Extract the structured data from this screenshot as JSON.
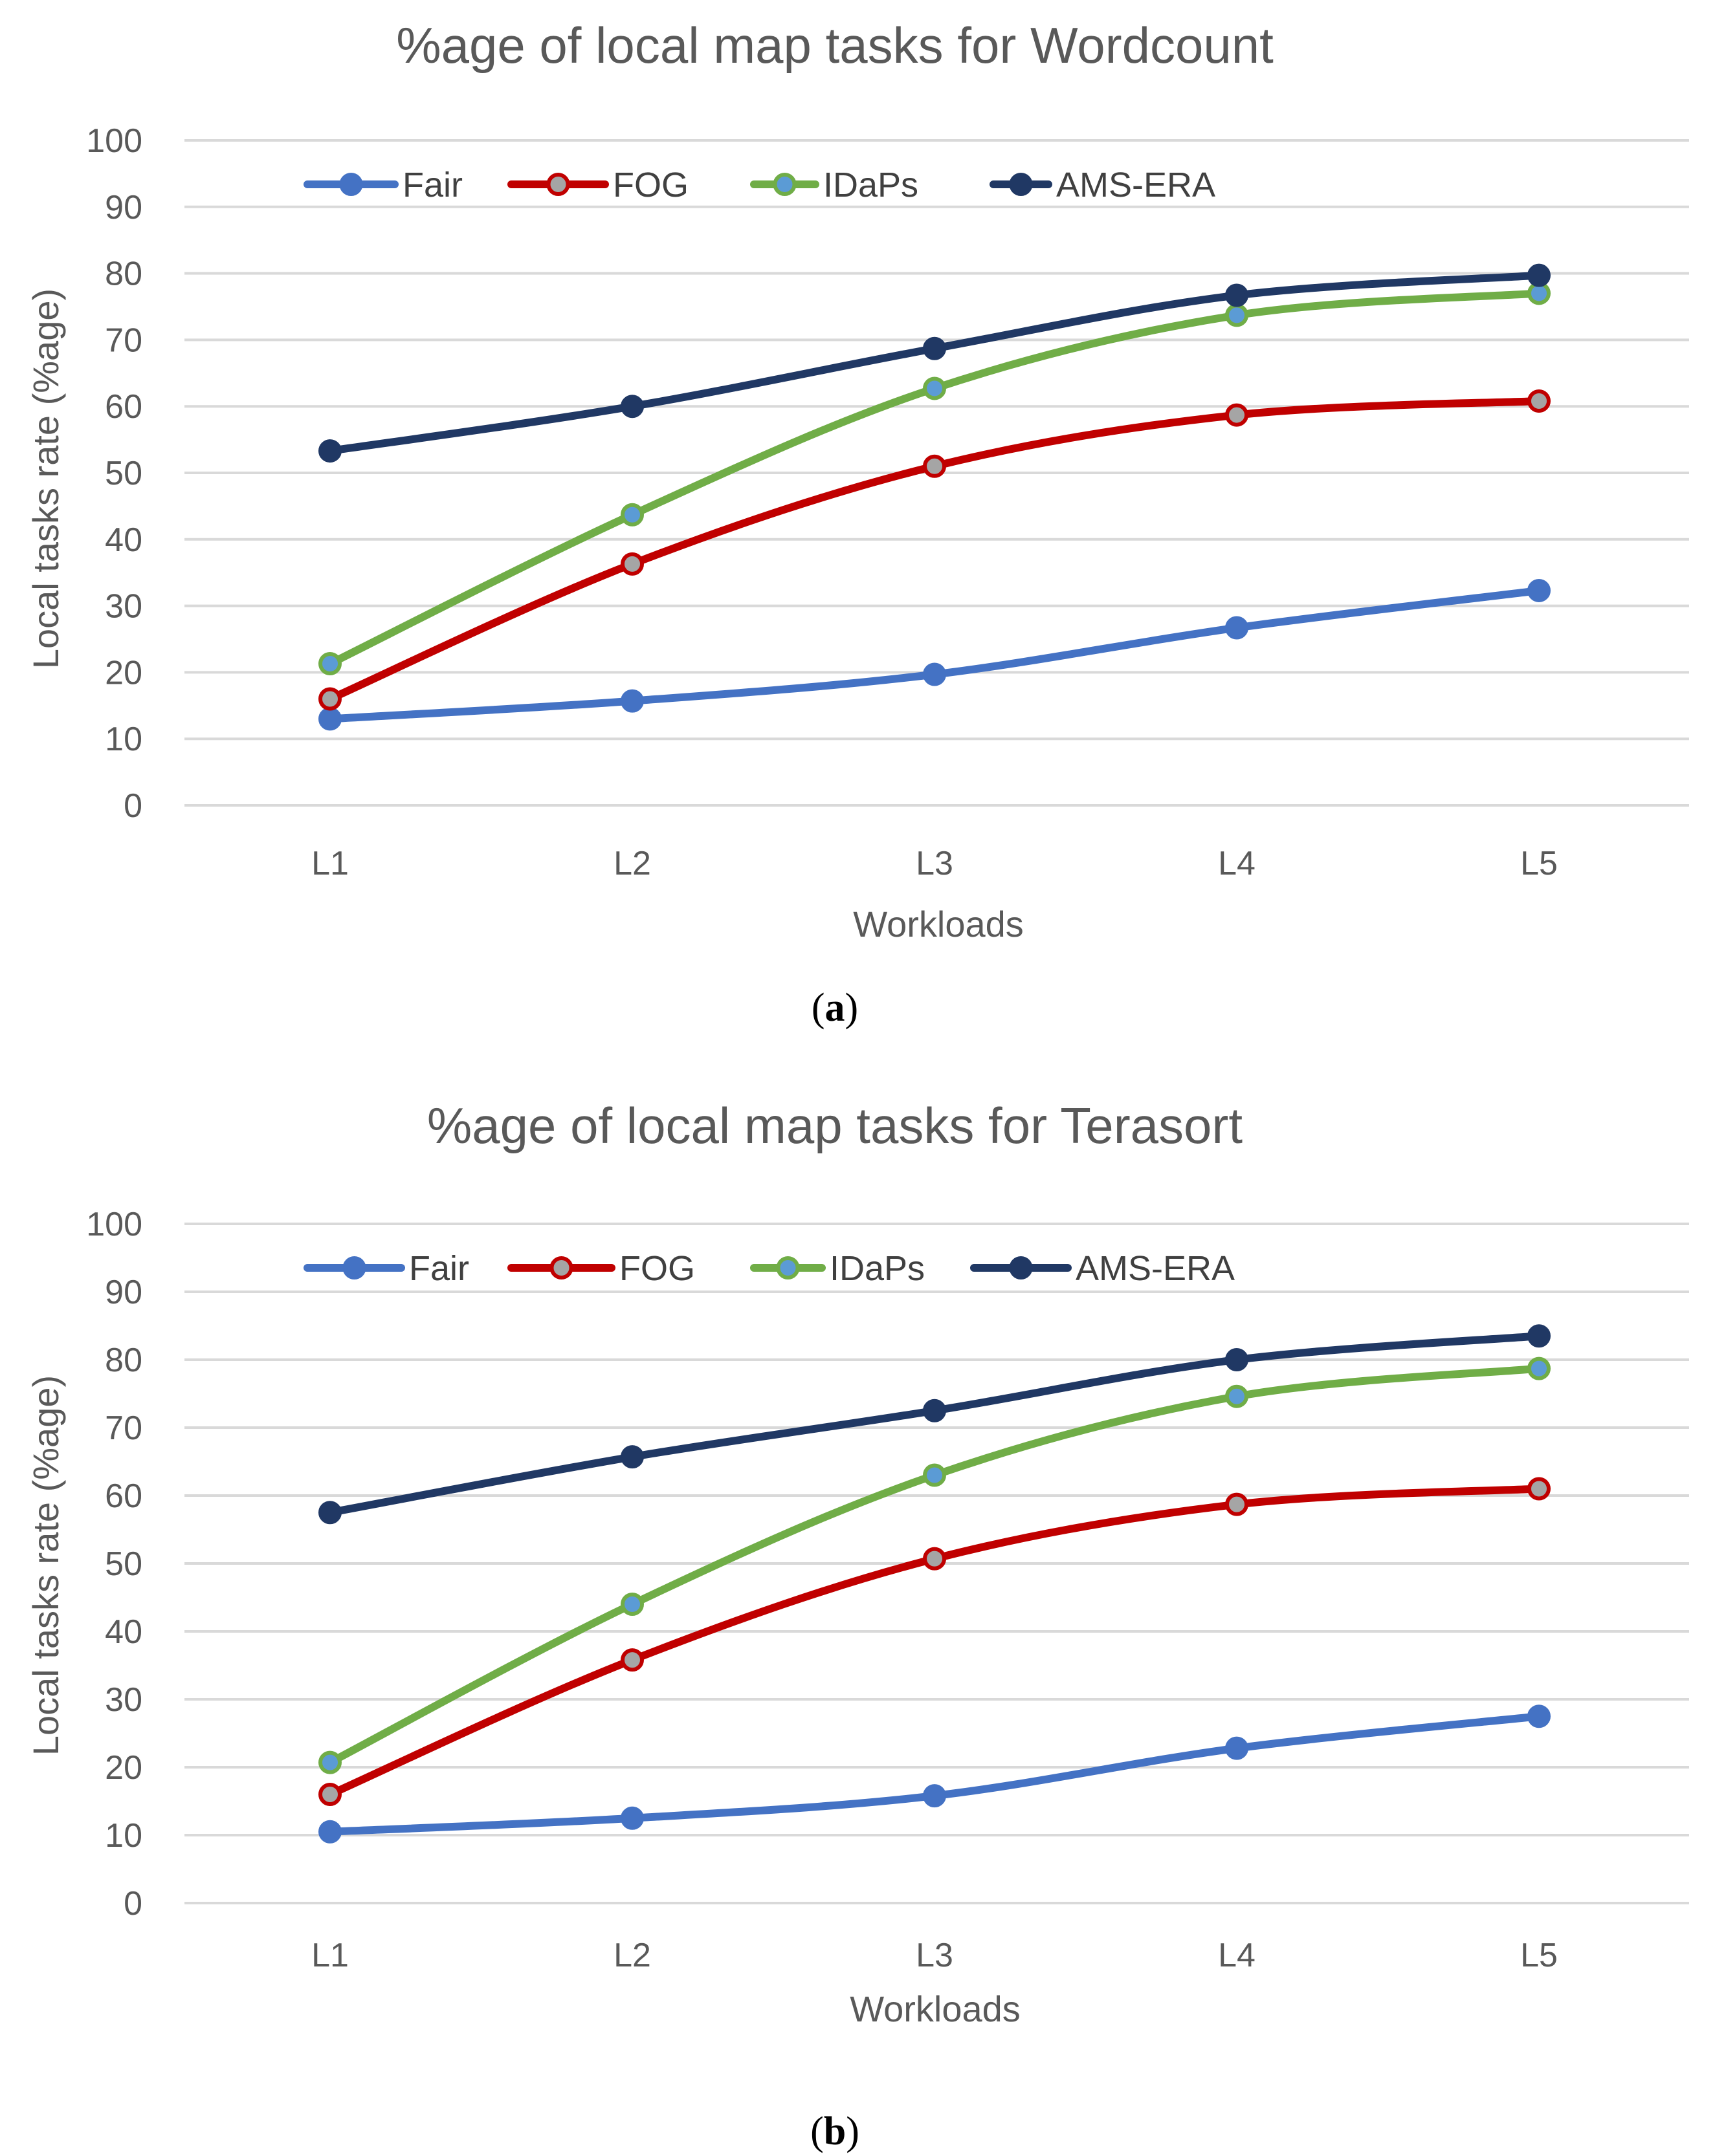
{
  "colors": {
    "Fair": "#4472C4",
    "FOG": "#C00000",
    "IDaPs": "#70AD47",
    "AMS-ERA": "#203864",
    "marker_fill_Fair": "#4472C4",
    "marker_fill_FOG": "#A5A5A5",
    "marker_fill_IDaPs": "#5B9BD5",
    "marker_fill_AMS-ERA": "#203864"
  },
  "chart_data": [
    {
      "type": "line",
      "title": "%age of local map tasks for Wordcount",
      "xlabel": "Workloads",
      "ylabel": "Local tasks rate (%age)",
      "caption_letter": "a",
      "categories": [
        "L1",
        "L2",
        "L3",
        "L4",
        "L5"
      ],
      "ylim": [
        0,
        100
      ],
      "yticks": [
        "0",
        "10",
        "20",
        "30",
        "40",
        "50",
        "60",
        "70",
        "80",
        "90",
        "100"
      ],
      "grid": true,
      "legend": "top",
      "series": [
        {
          "name": "Fair",
          "values": [
            13,
            15.7,
            19.7,
            26.7,
            32.3
          ]
        },
        {
          "name": "FOG",
          "values": [
            16,
            36.3,
            51,
            58.7,
            60.8
          ]
        },
        {
          "name": "IDaPs",
          "values": [
            21.3,
            43.7,
            62.7,
            73.7,
            77
          ]
        },
        {
          "name": "AMS-ERA",
          "values": [
            53.3,
            60,
            68.7,
            76.7,
            79.7
          ]
        }
      ]
    },
    {
      "type": "line",
      "title": "%age of local map tasks for Terasort",
      "xlabel": "Workloads",
      "ylabel": "Local tasks rate (%age)",
      "caption_letter": "b",
      "categories": [
        "L1",
        "L2",
        "L3",
        "L4",
        "L5"
      ],
      "ylim": [
        0,
        100
      ],
      "yticks": [
        "0",
        "10",
        "20",
        "30",
        "40",
        "50",
        "60",
        "70",
        "80",
        "90",
        "100"
      ],
      "grid": true,
      "legend": "top",
      "series": [
        {
          "name": "Fair",
          "values": [
            10.5,
            12.5,
            15.8,
            22.8,
            27.5
          ]
        },
        {
          "name": "FOG",
          "values": [
            16,
            35.8,
            50.7,
            58.7,
            61
          ]
        },
        {
          "name": "IDaPs",
          "values": [
            20.7,
            44,
            63,
            74.6,
            78.7
          ]
        },
        {
          "name": "AMS-ERA",
          "values": [
            57.5,
            65.7,
            72.5,
            80,
            83.5
          ]
        }
      ]
    }
  ]
}
